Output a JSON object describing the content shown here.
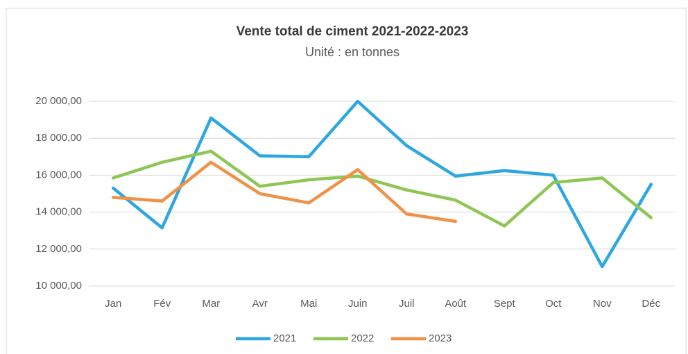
{
  "chart_data": {
    "type": "line",
    "title": "Vente total de ciment  2021-2022-2023",
    "subtitle": "Unité : en tonnes",
    "categories": [
      "Jan",
      "Fév",
      "Mar",
      "Avr",
      "Mai",
      "Juin",
      "Juil",
      "Août",
      "Sept",
      "Oct",
      "Nov",
      "Déc"
    ],
    "series": [
      {
        "name": "2021",
        "color": "#2ea6e0",
        "values": [
          15300,
          13150,
          19100,
          17050,
          17000,
          20000,
          17600,
          15950,
          16250,
          16000,
          11050,
          15500
        ]
      },
      {
        "name": "2022",
        "color": "#8dc653",
        "values": [
          15850,
          16700,
          17300,
          15400,
          15750,
          15950,
          15200,
          14650,
          13250,
          15600,
          15850,
          13700
        ]
      },
      {
        "name": "2023",
        "color": "#ef9149",
        "values": [
          14800,
          14600,
          16700,
          15000,
          14500,
          16300,
          13900,
          13500,
          null,
          null,
          null,
          null
        ]
      }
    ],
    "ylim": [
      10000,
      20000
    ],
    "yticks": [
      {
        "value": 10000,
        "label": "10 000,00"
      },
      {
        "value": 12000,
        "label": "12 000,00"
      },
      {
        "value": 14000,
        "label": "14 000,00"
      },
      {
        "value": 16000,
        "label": "16 000,00"
      },
      {
        "value": 18000,
        "label": "18 000,00"
      },
      {
        "value": 20000,
        "label": "20 000,00"
      }
    ],
    "grid": true,
    "legend": "bottom"
  }
}
